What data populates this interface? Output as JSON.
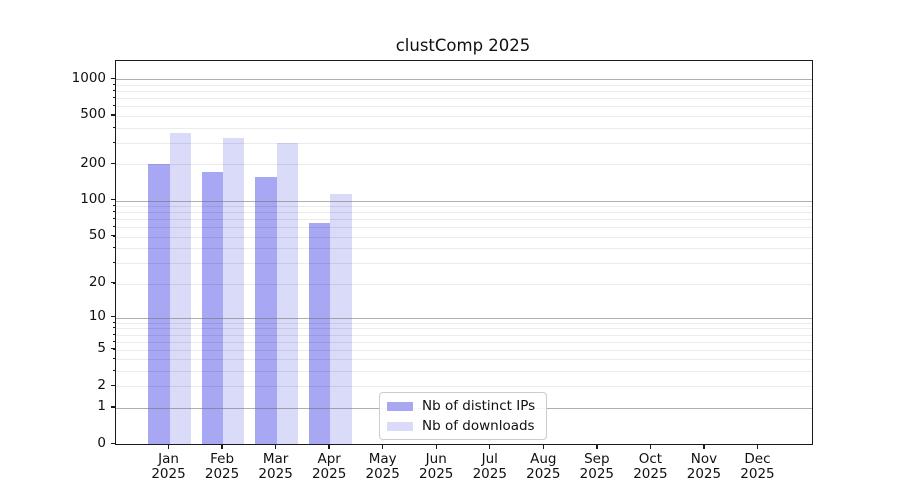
{
  "title": "clustComp 2025",
  "legend": {
    "items": [
      {
        "label": "Nb of distinct IPs",
        "color": "#a7a7f4"
      },
      {
        "label": "Nb of downloads",
        "color": "#dadaf9"
      }
    ]
  },
  "chart_data": {
    "type": "bar",
    "title": "clustComp 2025",
    "categories": [
      "Jan",
      "Feb",
      "Mar",
      "Apr",
      "May",
      "Jun",
      "Jul",
      "Aug",
      "Sep",
      "Oct",
      "Nov",
      "Dec"
    ],
    "category_year": "2025",
    "series": [
      {
        "name": "Nb of distinct IPs",
        "color": "#a7a7f4",
        "values": [
          200,
          172,
          158,
          65,
          null,
          null,
          null,
          null,
          null,
          null,
          null,
          null
        ]
      },
      {
        "name": "Nb of downloads",
        "color": "#dadaf9",
        "values": [
          360,
          330,
          300,
          113,
          null,
          null,
          null,
          null,
          null,
          null,
          null,
          null
        ]
      }
    ],
    "yscale": "log1p",
    "ylim": [
      0,
      1430
    ],
    "y_ticks": [
      0,
      1,
      2,
      5,
      10,
      20,
      50,
      100,
      200,
      500,
      1000
    ],
    "y_major_gridlines": [
      1,
      10,
      100,
      1000
    ],
    "y_minor_gridlines": [
      2,
      3,
      4,
      5,
      6,
      7,
      8,
      9,
      20,
      30,
      40,
      50,
      60,
      70,
      80,
      90,
      200,
      300,
      400,
      500,
      600,
      700,
      800,
      900
    ],
    "grid": true,
    "legend_position": "lower center",
    "xlabel": "",
    "ylabel": ""
  }
}
